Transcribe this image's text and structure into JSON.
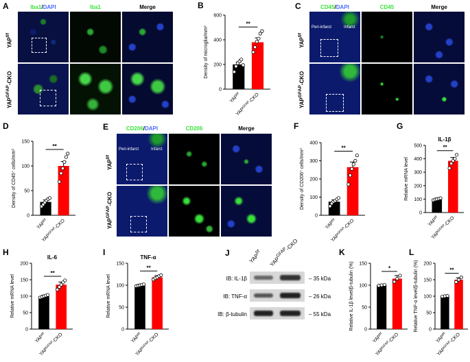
{
  "colors": {
    "ctrl_bar": "#000000",
    "cko_bar": "#ff0000",
    "green_stain": "#39e23a",
    "blue_stain": "#4a6bff",
    "background": "#ffffff"
  },
  "panels": {
    "A": {
      "label": "A",
      "headers": {
        "stain": "Iba1",
        "sep": "/",
        "dapi": "DAPI",
        "single": "Iba1",
        "merge": "Merge"
      },
      "row_labels": [
        "YAP",
        "YAP"
      ],
      "row_sup": [
        "f/f",
        "GFAP"
      ],
      "row_suffix": [
        "",
        "-CKO"
      ]
    },
    "C": {
      "label": "C",
      "headers": {
        "stain": "CD45",
        "sep": "/",
        "dapi": "DAPI",
        "single": "CD45",
        "merge": "Merge"
      },
      "row_labels": [
        "YAP",
        "YAP"
      ],
      "row_sup": [
        "f/f",
        "GFAP"
      ],
      "row_suffix": [
        "",
        "-CKO"
      ],
      "annotations": [
        "Peri-infarct",
        "Infarct"
      ]
    },
    "E": {
      "label": "E",
      "headers": {
        "stain": "CD206",
        "sep": "/",
        "dapi": "DAPI",
        "single": "CD206",
        "merge": "Merge"
      },
      "row_labels": [
        "YAP",
        "YAP"
      ],
      "row_sup": [
        "f/f",
        "GFAP"
      ],
      "row_suffix": [
        "",
        "-CKO"
      ],
      "annotations": [
        "Peri-infarct",
        "Infarct"
      ]
    },
    "J": {
      "label": "J",
      "lanes": [
        "YAP",
        "YAP"
      ],
      "lane_sup": [
        "f/f",
        "GFAP"
      ],
      "lane_suffix": [
        "",
        "-CKO"
      ],
      "rows": [
        {
          "name": "IB: IL-1β",
          "size": "35 kDa"
        },
        {
          "name": "IB: TNF-α",
          "size": "26 kDa"
        },
        {
          "name": "IB: β-tubulin",
          "size": "55 kDa"
        }
      ]
    }
  },
  "chart_data": [
    {
      "panel": "B",
      "label": "B",
      "type": "bar",
      "title": "",
      "ylabel": "Density of microglia/mm",
      "ylabel_sup": "2",
      "ylim": [
        0,
        600
      ],
      "yticks": [
        "0",
        "200",
        "400",
        "600"
      ],
      "categories": [
        "YAP",
        "YAP"
      ],
      "cat_sup": [
        "f/f",
        "GFAP"
      ],
      "cat_suffix": [
        "",
        "-CKO"
      ],
      "values": [
        200,
        380
      ],
      "errors": [
        20,
        35
      ],
      "points": [
        [
          140,
          185,
          210,
          225,
          240,
          195
        ],
        [
          300,
          340,
          385,
          410,
          450,
          470
        ]
      ],
      "significance": "**"
    },
    {
      "panel": "D",
      "label": "D",
      "type": "bar",
      "title": "",
      "ylabel": "Density of CD45",
      "ylabel_sup": "+",
      "ylabel_tail": " cells/mm",
      "ylabel_sup2": "2",
      "ylim": [
        0,
        150
      ],
      "yticks": [
        "0",
        "50",
        "100",
        "150"
      ],
      "categories": [
        "YAP",
        "YAP"
      ],
      "cat_sup": [
        "f/f",
        "GFAP"
      ],
      "cat_suffix": [
        "",
        "-CKO"
      ],
      "values": [
        27,
        100
      ],
      "errors": [
        4,
        9
      ],
      "points": [
        [
          18,
          22,
          26,
          30,
          33,
          35
        ],
        [
          68,
          85,
          95,
          108,
          118,
          125
        ]
      ],
      "significance": "**"
    },
    {
      "panel": "F",
      "label": "F",
      "type": "bar",
      "title": "",
      "ylabel": "Density of CD206",
      "ylabel_sup": "+",
      "ylabel_tail": " cells/mm",
      "ylabel_sup2": "2",
      "ylim": [
        0,
        400
      ],
      "yticks": [
        "0",
        "100",
        "200",
        "300",
        "400"
      ],
      "categories": [
        "YAP",
        "YAP"
      ],
      "cat_sup": [
        "f/f",
        "GFAP"
      ],
      "cat_suffix": [
        "",
        "-CKO"
      ],
      "values": [
        75,
        265
      ],
      "errors": [
        10,
        28
      ],
      "points": [
        [
          50,
          65,
          75,
          80,
          88,
          95
        ],
        [
          170,
          220,
          255,
          280,
          300,
          330
        ]
      ],
      "significance": "**"
    },
    {
      "panel": "G",
      "label": "G",
      "type": "bar",
      "title": "IL-1β",
      "ylabel": "Relative mRNA level",
      "ylim": [
        0,
        500
      ],
      "yticks": [
        "0",
        "100",
        "200",
        "300",
        "400",
        "500"
      ],
      "categories": [
        "YAP",
        "YAP"
      ],
      "cat_sup": [
        "f/f",
        "GFAP"
      ],
      "cat_suffix": [
        "",
        "-CKO"
      ],
      "values": [
        100,
        385
      ],
      "errors": [
        5,
        25
      ],
      "points": [
        [
          92,
          97,
          100,
          103,
          107
        ],
        [
          330,
          365,
          385,
          400,
          430
        ]
      ],
      "significance": "**"
    },
    {
      "panel": "H",
      "label": "H",
      "type": "bar",
      "title": "IL-6",
      "ylabel": "Relative mRNA level",
      "ylim": [
        0,
        200
      ],
      "yticks": [
        "0",
        "50",
        "100",
        "150",
        "200"
      ],
      "categories": [
        "YAP",
        "YAP"
      ],
      "cat_sup": [
        "f/f",
        "GFAP"
      ],
      "cat_suffix": [
        "",
        "-CKO"
      ],
      "values": [
        100,
        135
      ],
      "errors": [
        3,
        8
      ],
      "points": [
        [
          96,
          98,
          100,
          102,
          104
        ],
        [
          120,
          128,
          135,
          142,
          148
        ]
      ],
      "significance": "**"
    },
    {
      "panel": "I",
      "label": "I",
      "type": "bar",
      "title": "TNF-α",
      "ylabel": "Relative mRNA level",
      "ylim": [
        0,
        150
      ],
      "yticks": [
        "0",
        "50",
        "100",
        "150"
      ],
      "categories": [
        "YAP",
        "YAP"
      ],
      "cat_sup": [
        "f/f",
        "GFAP"
      ],
      "cat_suffix": [
        "",
        "-CKO"
      ],
      "values": [
        100,
        118
      ],
      "errors": [
        2,
        4
      ],
      "points": [
        [
          98,
          99,
          100,
          101,
          102
        ],
        [
          113,
          116,
          118,
          121,
          123
        ]
      ],
      "significance": "**"
    },
    {
      "panel": "K",
      "label": "K",
      "type": "bar",
      "title": "",
      "ylabel": "Relative IL-1β level/β-tubulin (%)",
      "ylim": [
        0,
        150
      ],
      "yticks": [
        "0",
        "50",
        "100",
        "150"
      ],
      "categories": [
        "YAP",
        "YAP"
      ],
      "cat_sup": [
        "f/f",
        "GFAP"
      ],
      "cat_suffix": [
        "",
        "-CKO"
      ],
      "values": [
        100,
        115
      ],
      "errors": [
        1,
        7
      ],
      "points": [
        [
          99,
          100,
          101
        ],
        [
          108,
          115,
          122
        ]
      ],
      "significance": "*"
    },
    {
      "panel": "L",
      "label": "L",
      "type": "bar",
      "title": "",
      "ylabel": "Relative TNF-α level/β-tubulin (%)",
      "ylim": [
        0,
        200
      ],
      "yticks": [
        "0",
        "50",
        "100",
        "150",
        "200"
      ],
      "categories": [
        "YAP",
        "YAP"
      ],
      "cat_sup": [
        "f/f",
        "GFAP"
      ],
      "cat_suffix": [
        "",
        "-CKO"
      ],
      "values": [
        100,
        150
      ],
      "errors": [
        1,
        6
      ],
      "points": [
        [
          99,
          100,
          101
        ],
        [
          143,
          150,
          157
        ]
      ],
      "significance": "**"
    }
  ]
}
